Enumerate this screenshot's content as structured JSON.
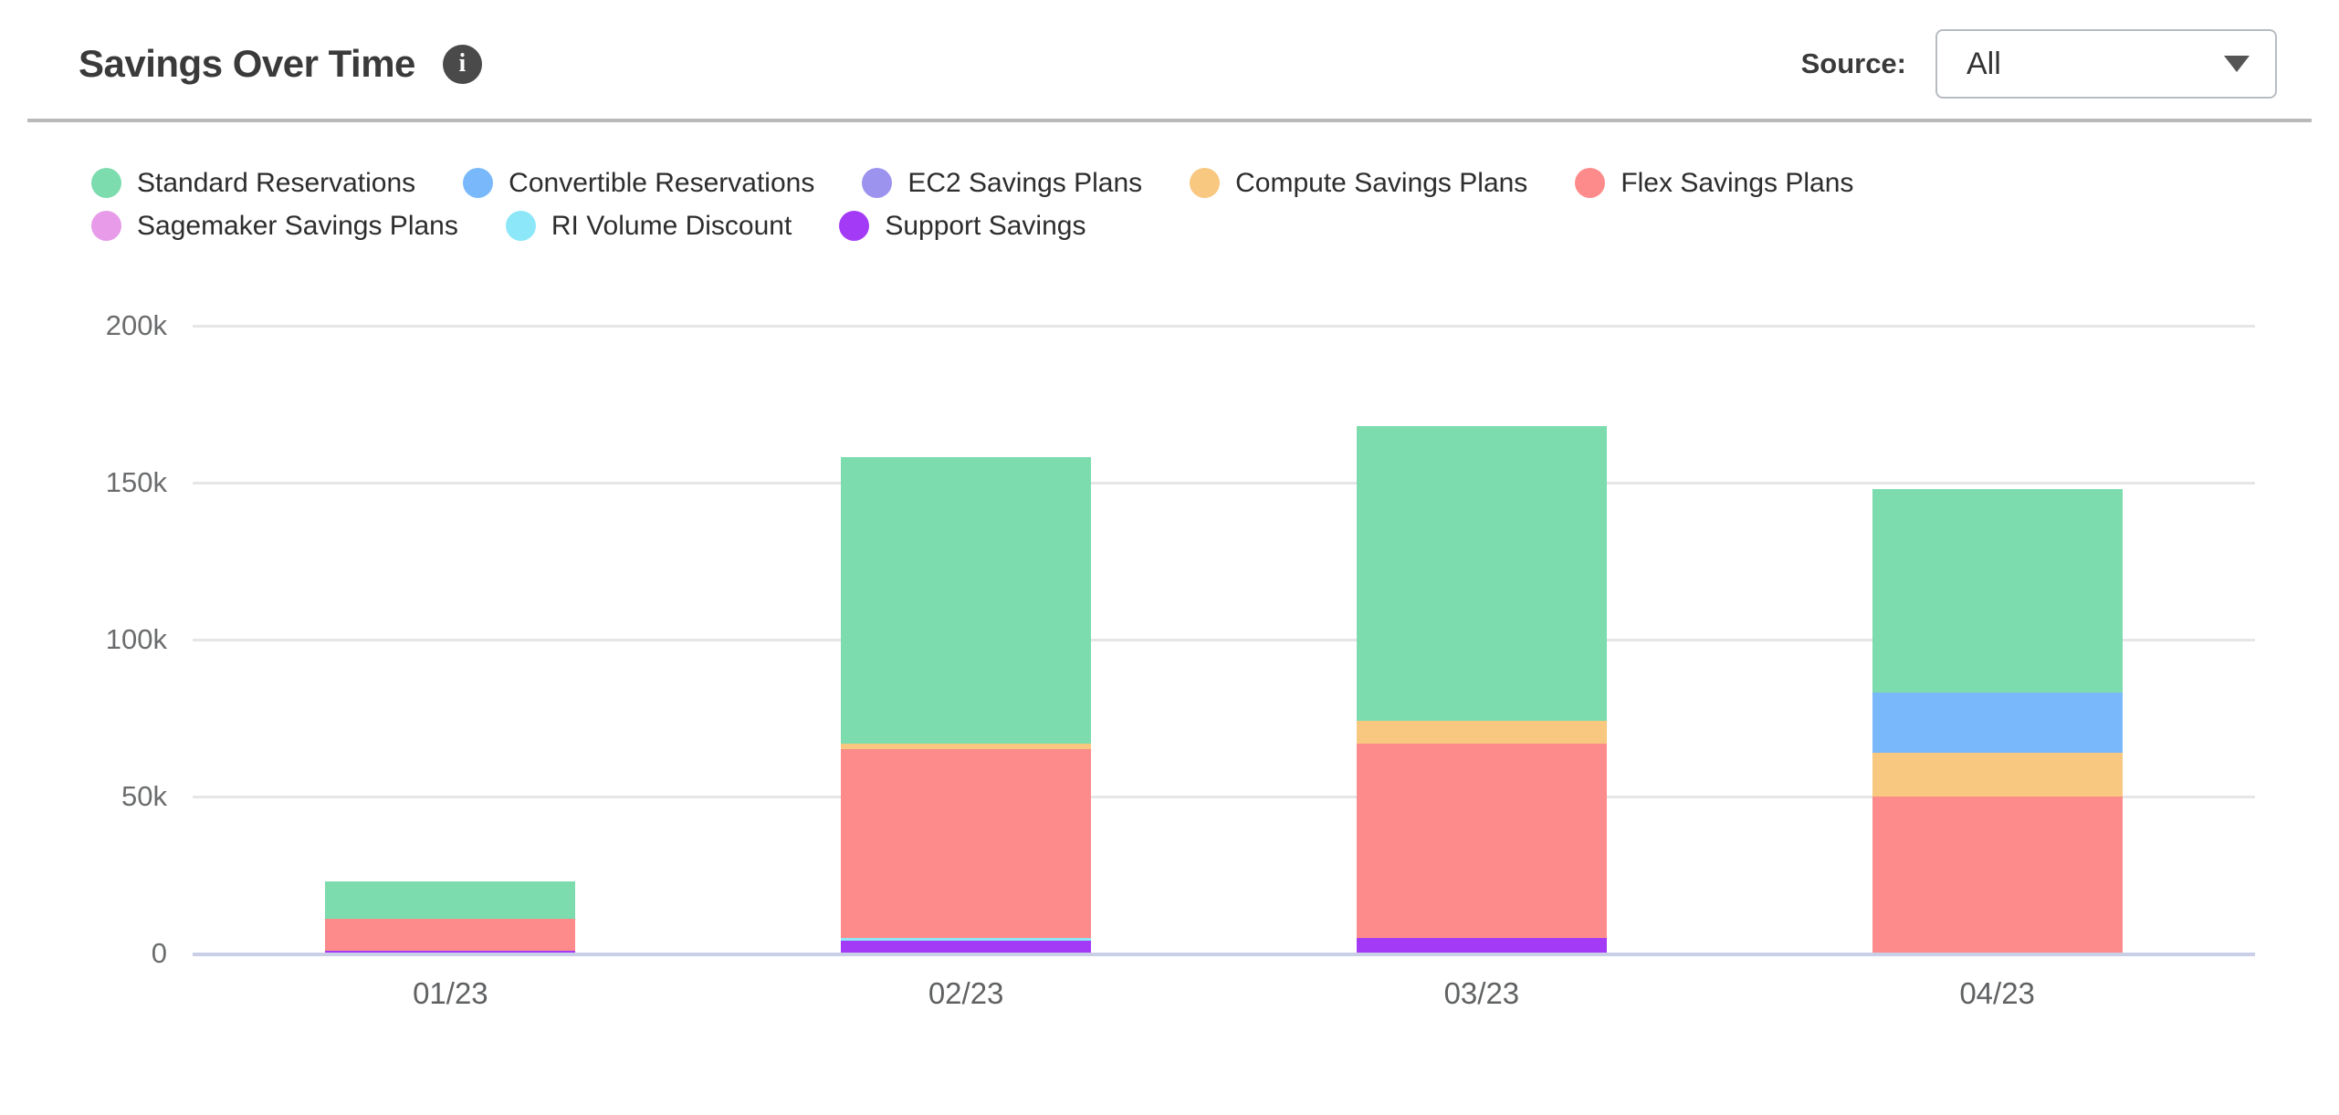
{
  "header": {
    "title": "Savings Over Time",
    "info_icon_glyph": "i",
    "source_label": "Source:",
    "source_value": "All"
  },
  "legend": {
    "items": [
      {
        "label": "Standard Reservations",
        "color": "#7CDCAE"
      },
      {
        "label": "Convertible Reservations",
        "color": "#79B8FA"
      },
      {
        "label": "EC2 Savings Plans",
        "color": "#9C93EF"
      },
      {
        "label": "Compute Savings Plans",
        "color": "#F8C780"
      },
      {
        "label": "Flex Savings Plans",
        "color": "#FD8B8B"
      },
      {
        "label": "Sagemaker Savings Plans",
        "color": "#E79BE9"
      },
      {
        "label": "RI Volume Discount",
        "color": "#8CE7F9"
      },
      {
        "label": "Support Savings",
        "color": "#A33BF6"
      }
    ]
  },
  "chart_data": {
    "type": "bar",
    "stacked": true,
    "title": "Savings Over Time",
    "categories": [
      "01/23",
      "02/23",
      "03/23",
      "04/23"
    ],
    "value_unit": "thousands (k)",
    "series": [
      {
        "name": "Standard Reservations",
        "color": "#7CDCAE",
        "values": [
          12,
          91,
          94,
          65
        ]
      },
      {
        "name": "Convertible Reservations",
        "color": "#79B8FA",
        "values": [
          0,
          0,
          0,
          19
        ]
      },
      {
        "name": "EC2 Savings Plans",
        "color": "#9C93EF",
        "values": [
          0,
          0,
          0,
          0
        ]
      },
      {
        "name": "Compute Savings Plans",
        "color": "#F8C780",
        "values": [
          0,
          2,
          7,
          14
        ]
      },
      {
        "name": "Flex Savings Plans",
        "color": "#FD8B8B",
        "values": [
          10,
          60,
          62,
          50
        ]
      },
      {
        "name": "Sagemaker Savings Plans",
        "color": "#E79BE9",
        "values": [
          0,
          0,
          0,
          0
        ]
      },
      {
        "name": "RI Volume Discount",
        "color": "#8CE7F9",
        "values": [
          0,
          1,
          0,
          0
        ]
      },
      {
        "name": "Support Savings",
        "color": "#A33BF6",
        "values": [
          1,
          4,
          5,
          0
        ]
      }
    ],
    "stack_order": [
      "Support Savings",
      "RI Volume Discount",
      "Flex Savings Plans",
      "Compute Savings Plans",
      "Convertible Reservations",
      "EC2 Savings Plans",
      "Sagemaker Savings Plans",
      "Standard Reservations"
    ],
    "totals": [
      23,
      158,
      168,
      148
    ],
    "ylim": [
      0,
      200
    ],
    "yticks": [
      {
        "value": 0,
        "label": "0"
      },
      {
        "value": 50,
        "label": "50k"
      },
      {
        "value": 100,
        "label": "100k"
      },
      {
        "value": 150,
        "label": "150k"
      },
      {
        "value": 200,
        "label": "200k"
      }
    ],
    "grid": "horizontal",
    "legend_position": "top"
  },
  "colors": {
    "gridline": "#E6E6E8",
    "axis_line": "#C9CFE7",
    "tick_label": "#6A6C6E",
    "divider": "#B9B9B9"
  }
}
